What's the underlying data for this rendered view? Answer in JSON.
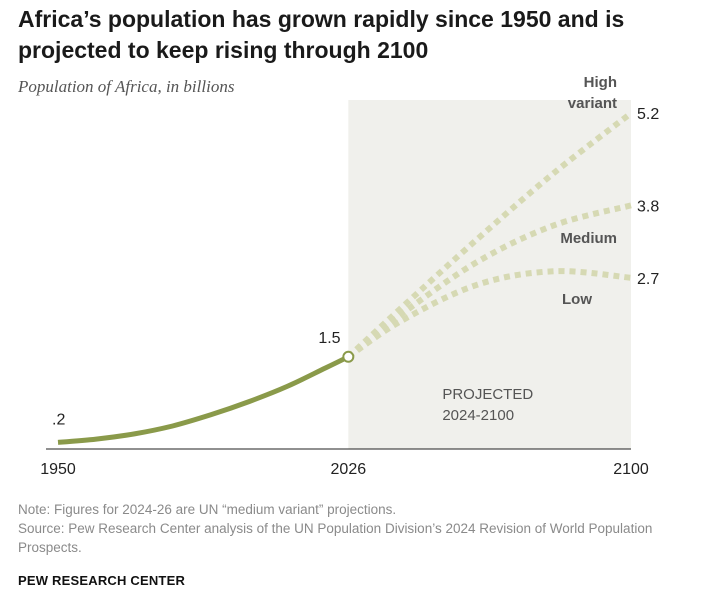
{
  "title": "Africa’s population has grown rapidly since 1950 and is projected to keep rising through 2100",
  "subtitle": "Population of Africa, in billions",
  "notes": {
    "note": "Note: Figures for 2024-26 are UN “medium variant” projections.",
    "source": "Source: Pew Research Center analysis of the UN Population Division’s 2024 Revision of World Population Prospects."
  },
  "brand": "PEW RESEARCH CENTER",
  "colors": {
    "historical": "#8a9a4a",
    "projection": "#d6d9b3",
    "shade": "#f0f0ec",
    "label": "#555555"
  },
  "chart_data": {
    "type": "line",
    "xlim": [
      1950,
      2100
    ],
    "ylim": [
      0.1,
      5.4
    ],
    "x_ticks": [
      "1950",
      "2026",
      "2100"
    ],
    "projected_region": {
      "x_start": 2026,
      "x_end": 2100,
      "label_line1": "PROJECTED",
      "label_line2": "2024-2100"
    },
    "historical": {
      "x": [
        1950,
        1960,
        1970,
        1980,
        1990,
        2000,
        2010,
        2020,
        2026
      ],
      "y": [
        0.2,
        0.25,
        0.33,
        0.45,
        0.62,
        0.82,
        1.05,
        1.33,
        1.5
      ],
      "start_label": ".2",
      "end_label": "1.5"
    },
    "series": [
      {
        "name": "High variant",
        "name_line1": "High",
        "name_line2": "variant",
        "end_label": "5.2",
        "x": [
          2026,
          2040,
          2060,
          2080,
          2100
        ],
        "y": [
          1.5,
          2.25,
          3.3,
          4.3,
          5.2
        ]
      },
      {
        "name": "Medium",
        "end_label": "3.8",
        "x": [
          2026,
          2040,
          2060,
          2080,
          2100
        ],
        "y": [
          1.5,
          2.15,
          2.95,
          3.5,
          3.8
        ]
      },
      {
        "name": "Low",
        "end_label": "2.7",
        "x": [
          2026,
          2040,
          2060,
          2080,
          2100
        ],
        "y": [
          1.5,
          2.05,
          2.6,
          2.8,
          2.7
        ]
      }
    ]
  }
}
